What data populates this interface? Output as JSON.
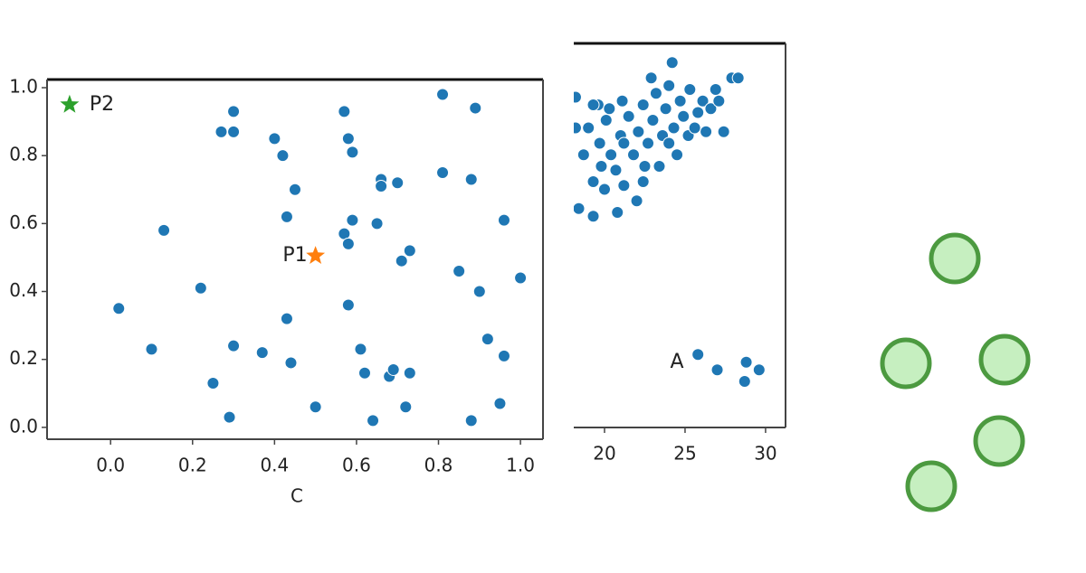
{
  "chart_data": [
    {
      "type": "scatter",
      "xlabel": "C",
      "color": "#1f77b4",
      "x": [
        0.02,
        0.1,
        0.13,
        0.22,
        0.25,
        0.27,
        0.29,
        0.3,
        0.3,
        0.3,
        0.37,
        0.4,
        0.42,
        0.43,
        0.43,
        0.44,
        0.45,
        0.5,
        0.57,
        0.58,
        0.59,
        0.57,
        0.58,
        0.59,
        0.58,
        0.61,
        0.62,
        0.64,
        0.66,
        0.66,
        0.65,
        0.7,
        0.71,
        0.73,
        0.68,
        0.69,
        0.72,
        0.73,
        0.81,
        0.81,
        0.85,
        0.88,
        0.89,
        0.9,
        0.88,
        0.92,
        0.96,
        0.96,
        0.95,
        1.0
      ],
      "values": [
        0.35,
        0.23,
        0.58,
        0.41,
        0.13,
        0.87,
        0.03,
        0.87,
        0.93,
        0.24,
        0.22,
        0.85,
        0.8,
        0.62,
        0.32,
        0.19,
        0.7,
        0.06,
        0.93,
        0.85,
        0.81,
        0.57,
        0.54,
        0.61,
        0.36,
        0.23,
        0.16,
        0.02,
        0.73,
        0.71,
        0.6,
        0.72,
        0.49,
        0.52,
        0.15,
        0.17,
        0.06,
        0.16,
        0.75,
        0.98,
        0.46,
        0.73,
        0.94,
        0.4,
        0.02,
        0.26,
        0.61,
        0.21,
        0.07,
        0.44
      ],
      "xlim": [
        -0.155,
        1.055
      ],
      "ylim": [
        -0.035,
        1.024
      ],
      "xticks": [
        {
          "value": 0,
          "label": "0.0"
        },
        0.2,
        0.4,
        0.6,
        0.8,
        {
          "value": 1,
          "label": "1.0"
        }
      ],
      "yticks": [
        {
          "value": 0,
          "label": "0.0"
        },
        0.2,
        0.4,
        0.6,
        0.8,
        {
          "value": 1,
          "label": "1.0"
        }
      ],
      "annotations": [
        {
          "text": "P1",
          "x": 0.5,
          "y": 0.505,
          "color": "#ff7f0e",
          "side": "left"
        },
        {
          "text": "P2",
          "x": -0.1,
          "y": 0.95,
          "color": "#2ca02c",
          "side": "right"
        }
      ]
    },
    {
      "type": "scatter",
      "color": "#1f77b4",
      "x": [
        18.2,
        18.2,
        18.4,
        18.7,
        19.0,
        19.3,
        19.3,
        19.6,
        19.7,
        19.8,
        20.0,
        20.1,
        20.3,
        20.4,
        20.7,
        20.8,
        21.0,
        21.1,
        21.2,
        21.5,
        21.8,
        22.0,
        22.1,
        22.4,
        22.5,
        22.7,
        22.9,
        23.0,
        23.2,
        23.4,
        23.6,
        23.8,
        24.0,
        24.2,
        24.3,
        24.5,
        24.7,
        24.9,
        25.2,
        25.3,
        25.6,
        25.8,
        26.1,
        26.3,
        26.6,
        26.9,
        27.1,
        27.4,
        27.9,
        28.3,
        19.3,
        21.2,
        24.0,
        22.4,
        25.8,
        27.0,
        28.8,
        29.6,
        28.7
      ],
      "values": [
        0.86,
        0.78,
        0.57,
        0.71,
        0.78,
        0.64,
        0.55,
        0.84,
        0.74,
        0.68,
        0.62,
        0.8,
        0.83,
        0.71,
        0.67,
        0.56,
        0.76,
        0.85,
        0.63,
        0.81,
        0.71,
        0.59,
        0.77,
        0.84,
        0.68,
        0.74,
        0.91,
        0.8,
        0.87,
        0.68,
        0.76,
        0.83,
        0.89,
        0.95,
        0.78,
        0.71,
        0.85,
        0.81,
        0.76,
        0.88,
        0.78,
        0.82,
        0.85,
        0.77,
        0.83,
        0.88,
        0.85,
        0.77,
        0.91,
        0.91,
        0.84,
        0.74,
        0.74,
        0.64,
        0.19,
        0.15,
        0.17,
        0.15,
        0.12
      ],
      "xlim": [
        18.09,
        31.24
      ],
      "ylim": [
        0,
        1
      ],
      "xticks": [
        20,
        25,
        30
      ],
      "annotations": [
        {
          "text": "A",
          "x": 24.5,
          "y": 0.17,
          "side": "label"
        }
      ]
    }
  ]
}
